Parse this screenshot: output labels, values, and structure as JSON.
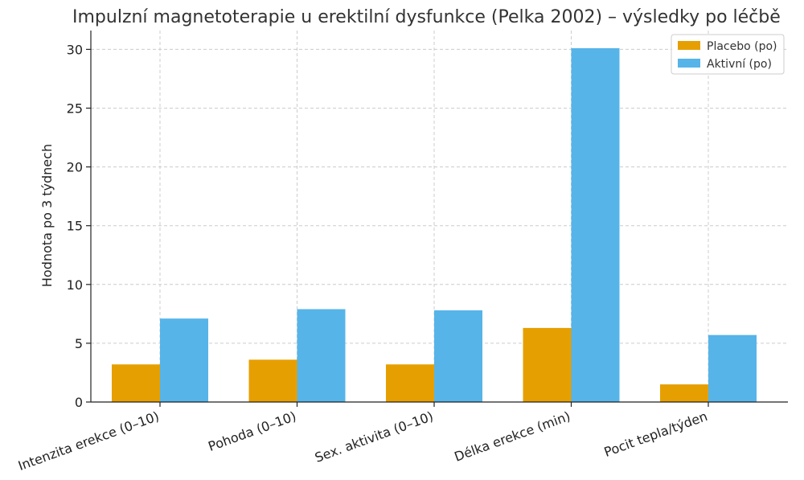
{
  "chart_data": {
    "type": "bar",
    "title": "Impulzní magnetoterapie u erektilní dysfunkce (Pelka 2002) – výsledky po léčbě",
    "xlabel": "",
    "ylabel": "Hodnota po 3 týdnech",
    "categories": [
      "Intenzita erekce (0–10)",
      "Pohoda (0–10)",
      "Sex. aktivita (0–10)",
      "Délka erekce (min)",
      "Pocit tepla/týden"
    ],
    "series": [
      {
        "name": "Placebo (po)",
        "color": "#E69F00",
        "values": [
          3.2,
          3.6,
          3.2,
          6.3,
          1.5
        ]
      },
      {
        "name": "Aktivní (po)",
        "color": "#56B4E9",
        "values": [
          7.1,
          7.9,
          7.8,
          30.1,
          5.7
        ]
      }
    ],
    "ylim": [
      0,
      31.6
    ],
    "yticks": [
      0,
      5,
      10,
      15,
      20,
      25,
      30
    ],
    "grid": true,
    "legend_position": "top-right"
  }
}
